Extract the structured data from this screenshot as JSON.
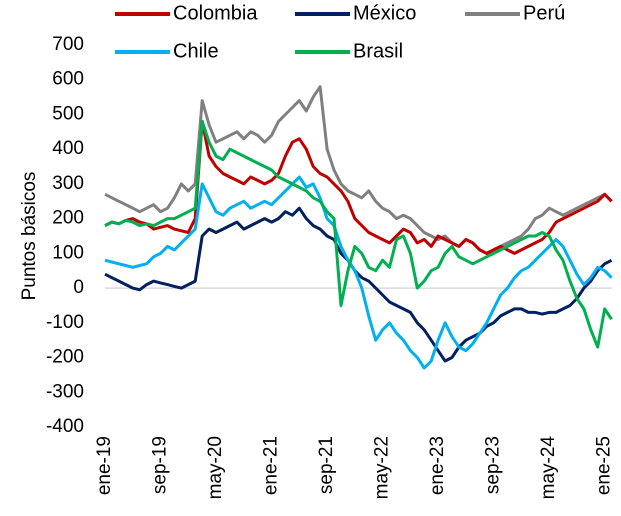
{
  "chart_data": {
    "type": "line",
    "y_label": "Puntos básicos",
    "categories": [
      "ene-19",
      null,
      null,
      null,
      null,
      null,
      null,
      null,
      "sep-19",
      null,
      null,
      null,
      null,
      null,
      null,
      null,
      "may-20",
      null,
      null,
      null,
      null,
      null,
      null,
      null,
      "ene-21",
      null,
      null,
      null,
      null,
      null,
      null,
      null,
      "sep-21",
      null,
      null,
      null,
      null,
      null,
      null,
      null,
      "may-22",
      null,
      null,
      null,
      null,
      null,
      null,
      null,
      "ene-23",
      null,
      null,
      null,
      null,
      null,
      null,
      null,
      "sep-23",
      null,
      null,
      null,
      null,
      null,
      null,
      null,
      "may-24",
      null,
      null,
      null,
      null,
      null,
      null,
      null,
      "ene-25",
      null
    ],
    "series": [
      {
        "name": "Colombia",
        "color": "#c00000",
        "values": [
          180,
          190,
          185,
          195,
          200,
          190,
          185,
          170,
          175,
          180,
          170,
          165,
          160,
          200,
          480,
          380,
          350,
          330,
          320,
          310,
          300,
          320,
          310,
          300,
          310,
          330,
          380,
          420,
          430,
          400,
          350,
          330,
          320,
          300,
          280,
          250,
          200,
          180,
          160,
          150,
          140,
          130,
          150,
          170,
          160,
          130,
          140,
          120,
          150,
          140,
          130,
          120,
          140,
          130,
          110,
          100,
          110,
          120,
          110,
          100,
          110,
          120,
          130,
          140,
          160,
          190,
          200,
          210,
          220,
          230,
          240,
          250,
          270,
          250
        ]
      },
      {
        "name": "México",
        "color": "#002060",
        "values": [
          40,
          30,
          20,
          10,
          0,
          -5,
          10,
          20,
          15,
          10,
          5,
          0,
          10,
          20,
          150,
          170,
          160,
          170,
          180,
          190,
          170,
          180,
          190,
          200,
          190,
          200,
          220,
          210,
          230,
          200,
          180,
          170,
          150,
          140,
          100,
          80,
          50,
          30,
          20,
          0,
          -20,
          -40,
          -50,
          -60,
          -70,
          -100,
          -120,
          -150,
          -180,
          -210,
          -200,
          -170,
          -150,
          -140,
          -130,
          -110,
          -100,
          -80,
          -70,
          -60,
          -60,
          -70,
          -70,
          -75,
          -70,
          -70,
          -60,
          -50,
          -30,
          0,
          20,
          50,
          70,
          80
        ]
      },
      {
        "name": "Perú",
        "color": "#808080",
        "values": [
          270,
          260,
          250,
          240,
          230,
          220,
          230,
          240,
          220,
          230,
          260,
          300,
          280,
          300,
          540,
          470,
          420,
          430,
          440,
          450,
          430,
          450,
          440,
          420,
          440,
          480,
          500,
          520,
          540,
          510,
          550,
          580,
          400,
          340,
          300,
          280,
          270,
          260,
          280,
          250,
          230,
          220,
          200,
          210,
          200,
          180,
          160,
          150,
          140,
          150,
          130,
          120,
          140,
          130,
          110,
          100,
          110,
          120,
          130,
          140,
          150,
          170,
          200,
          210,
          230,
          220,
          210,
          220,
          230,
          240,
          250,
          260,
          270,
          250
        ]
      },
      {
        "name": "Chile",
        "color": "#00b0f0",
        "values": [
          80,
          75,
          70,
          65,
          60,
          65,
          70,
          90,
          100,
          120,
          110,
          130,
          150,
          170,
          300,
          260,
          220,
          210,
          230,
          240,
          250,
          230,
          240,
          250,
          240,
          260,
          280,
          300,
          320,
          290,
          300,
          260,
          200,
          180,
          120,
          80,
          50,
          0,
          -80,
          -150,
          -120,
          -100,
          -130,
          -150,
          -180,
          -200,
          -230,
          -210,
          -150,
          -100,
          -140,
          -170,
          -180,
          -160,
          -130,
          -100,
          -60,
          -20,
          0,
          30,
          50,
          60,
          80,
          100,
          120,
          140,
          120,
          80,
          40,
          10,
          30,
          60,
          50,
          30
        ]
      },
      {
        "name": "Brasil",
        "color": "#00b050",
        "values": [
          180,
          190,
          185,
          195,
          190,
          180,
          185,
          180,
          190,
          200,
          200,
          210,
          220,
          230,
          480,
          420,
          380,
          370,
          400,
          390,
          380,
          370,
          360,
          350,
          340,
          320,
          310,
          300,
          290,
          280,
          260,
          250,
          220,
          200,
          -50,
          50,
          120,
          100,
          60,
          50,
          80,
          60,
          140,
          150,
          100,
          0,
          20,
          50,
          60,
          100,
          120,
          90,
          80,
          70,
          80,
          90,
          100,
          110,
          120,
          130,
          140,
          150,
          150,
          160,
          150,
          110,
          80,
          20,
          -30,
          -60,
          -120,
          -170,
          -60,
          -90
        ]
      }
    ],
    "ylim": [
      -400,
      700
    ],
    "yticks": [
      -400,
      -300,
      -200,
      -100,
      0,
      100,
      200,
      300,
      400,
      500,
      600,
      700
    ]
  }
}
